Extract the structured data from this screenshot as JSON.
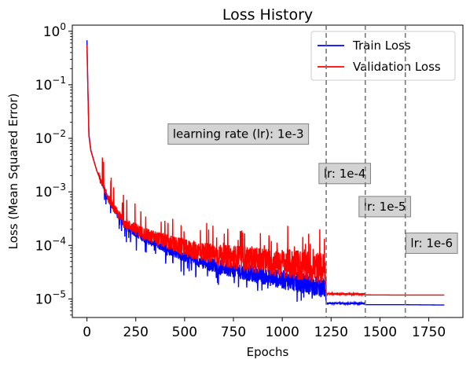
{
  "chart_data": {
    "type": "line",
    "title": "Loss History",
    "xlabel": "Epochs",
    "ylabel": "Loss (Mean Squared Error)",
    "xlim": [
      -75,
      1925
    ],
    "ylim": [
      4.5e-06,
      1.3
    ],
    "y_scale": "log",
    "x_ticks": [
      0,
      250,
      500,
      750,
      1000,
      1250,
      1500,
      1750
    ],
    "x_tick_labels": [
      "0",
      "250",
      "500",
      "750",
      "1000",
      "1250",
      "1500",
      "1750"
    ],
    "y_ticks": [
      1e-05,
      0.0001,
      0.001,
      0.01,
      0.1,
      1
    ],
    "y_tick_bases": [
      "10",
      "10",
      "10",
      "10",
      "10",
      "10"
    ],
    "y_tick_exponents": [
      "−5",
      "−4",
      "−3",
      "−2",
      "−1",
      "0"
    ],
    "legend_position": "top-right",
    "grid": false,
    "series": [
      {
        "name": "Train Loss",
        "color": "#0000ff",
        "points": [
          [
            0,
            0.68
          ],
          [
            5,
            0.08
          ],
          [
            10,
            0.012
          ],
          [
            20,
            0.006
          ],
          [
            50,
            0.0025
          ],
          [
            100,
            0.00085
          ],
          [
            150,
            0.0004
          ],
          [
            200,
            0.00022
          ],
          [
            300,
            0.00013
          ],
          [
            400,
            9e-05
          ],
          [
            500,
            6.2e-05
          ],
          [
            600,
            4.8e-05
          ],
          [
            700,
            3.8e-05
          ],
          [
            800,
            3.2e-05
          ],
          [
            900,
            2.7e-05
          ],
          [
            1000,
            2.3e-05
          ],
          [
            1100,
            2e-05
          ],
          [
            1220,
            1.6e-05
          ],
          [
            1225,
            8.3e-06
          ],
          [
            1420,
            8.2e-06
          ],
          [
            1425,
            7.8e-06
          ],
          [
            1630,
            7.8e-06
          ],
          [
            1830,
            7.7e-06
          ]
        ]
      },
      {
        "name": "Validation Loss",
        "color": "#ff0000",
        "points": [
          [
            0,
            0.55
          ],
          [
            5,
            0.07
          ],
          [
            10,
            0.011
          ],
          [
            20,
            0.0058
          ],
          [
            50,
            0.0025
          ],
          [
            100,
            0.00088
          ],
          [
            150,
            0.00042
          ],
          [
            200,
            0.00025
          ],
          [
            300,
            0.00016
          ],
          [
            400,
            0.00012
          ],
          [
            500,
            8.85e-05
          ],
          [
            600,
            7.5e-05
          ],
          [
            700,
            6.3e-05
          ],
          [
            800,
            5.8e-05
          ],
          [
            900,
            5.1e-05
          ],
          [
            1000,
            4.6e-05
          ],
          [
            1100,
            4.2e-05
          ],
          [
            1220,
            3.6e-05
          ],
          [
            1225,
            1.25e-05
          ],
          [
            1420,
            1.23e-05
          ],
          [
            1425,
            1.19e-05
          ],
          [
            1630,
            1.18e-05
          ],
          [
            1830,
            1.18e-05
          ]
        ]
      }
    ],
    "vlines": [
      1225,
      1425,
      1630
    ],
    "annotations": [
      {
        "text": "learning rate (lr): 1e-3",
        "x": 775,
        "y": 0.012
      },
      {
        "text": "lr: 1e-4",
        "x": 1320,
        "y": 0.0022
      },
      {
        "text": "lr: 1e-5",
        "x": 1525,
        "y": 0.00053
      },
      {
        "text": "lr: 1e-6",
        "x": 1765,
        "y": 0.00011
      }
    ]
  }
}
